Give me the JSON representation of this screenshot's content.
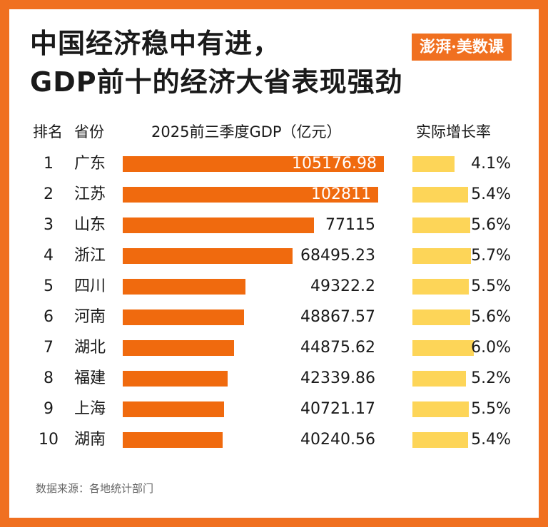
{
  "title_line1": "中国经济稳中有进，",
  "title_line2": "GDP前十的经济大省表现强劲",
  "logo_text": "澎湃·美数课",
  "headers": {
    "rank": "排名",
    "province": "省份",
    "gdp": "2025前三季度GDP（亿元）",
    "growth": "实际增长率"
  },
  "source": "数据来源：各地统计部门",
  "colors": {
    "gdp_bar": "#f06a0e",
    "growth_bar": "#fdd558",
    "frame": "#f07020",
    "text": "#1a1a1a"
  },
  "chart_data": {
    "type": "bar",
    "title": "2025前三季度GDP（亿元）",
    "categories": [
      "广东",
      "江苏",
      "山东",
      "浙江",
      "四川",
      "河南",
      "湖北",
      "福建",
      "上海",
      "湖南"
    ],
    "series": [
      {
        "name": "2025前三季度GDP（亿元）",
        "values": [
          105176.98,
          102811,
          77115,
          68495.23,
          49322.2,
          48867.57,
          44875.62,
          42339.86,
          40721.17,
          40240.56
        ],
        "labels": [
          "105176.98",
          "102811",
          "77115",
          "68495.23",
          "49322.2",
          "48867.57",
          "44875.62",
          "42339.86",
          "40721.17",
          "40240.56"
        ]
      },
      {
        "name": "实际增长率",
        "values": [
          4.1,
          5.4,
          5.6,
          5.7,
          5.5,
          5.6,
          6.0,
          5.2,
          5.5,
          5.4
        ],
        "labels": [
          "4.1%",
          "5.4%",
          "5.6%",
          "5.7%",
          "5.5%",
          "5.6%",
          "6.0%",
          "5.2%",
          "5.5%",
          "5.4%"
        ]
      }
    ],
    "ranks": [
      "1",
      "2",
      "3",
      "4",
      "5",
      "6",
      "7",
      "8",
      "9",
      "10"
    ]
  }
}
